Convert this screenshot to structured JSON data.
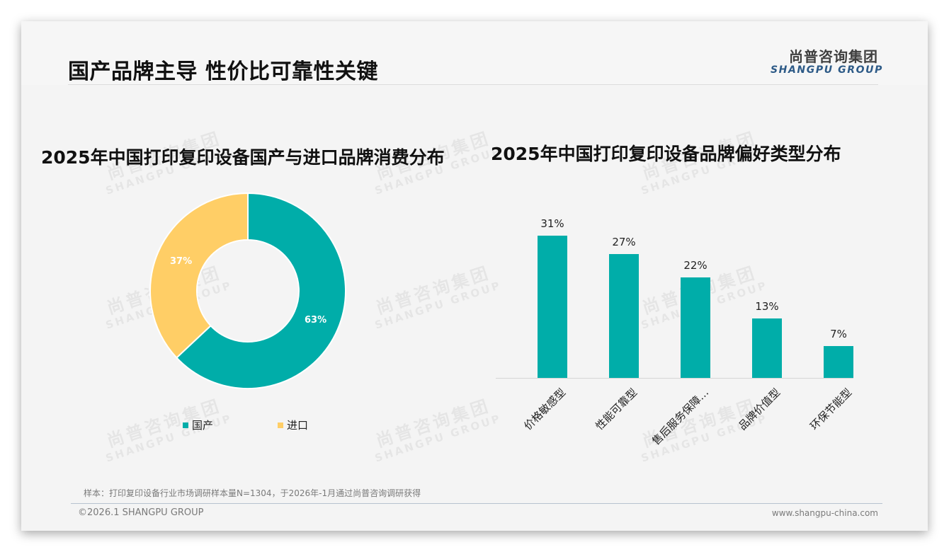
{
  "header": {
    "title": "国产品牌主导 性价比可靠性关键",
    "logo_cn": "尚普咨询集团",
    "logo_en": "SHANGPU GROUP"
  },
  "watermark": {
    "cn": "尚普咨询集团",
    "en": "SHANGPU GROUP"
  },
  "colors": {
    "teal": "#00ada9",
    "yellow": "#ffce66",
    "logo_blue": "#2d5a87"
  },
  "footer": {
    "sample_note": "样本：打印复印设备行业市场调研样本量N=1304，于2026年-1月通过尚普咨询调研获得",
    "copyright": "©2026.1 SHANGPU GROUP",
    "website": "www.shangpu-china.com"
  },
  "chart_data": [
    {
      "type": "pie",
      "variant": "donut",
      "title": "2025年中国打印复印设备国产与进口品牌消费分布",
      "categories": [
        "国产",
        "进口"
      ],
      "values": [
        63,
        37
      ],
      "labels": [
        "63%",
        "37%"
      ],
      "colors": [
        "#00ada9",
        "#ffce66"
      ],
      "legend_position": "bottom"
    },
    {
      "type": "bar",
      "title": "2025年中国打印复印设备品牌偏好类型分布",
      "categories": [
        "价格敏感型",
        "性能可靠型",
        "售后服务保障…",
        "品牌价值型",
        "环保节能型"
      ],
      "values": [
        31,
        27,
        22,
        13,
        7
      ],
      "labels": [
        "31%",
        "27%",
        "22%",
        "13%",
        "7%"
      ],
      "color": "#00ada9",
      "xlabel": "",
      "ylabel": "",
      "ylim": [
        0,
        35
      ],
      "grid": false,
      "legend": false
    }
  ]
}
